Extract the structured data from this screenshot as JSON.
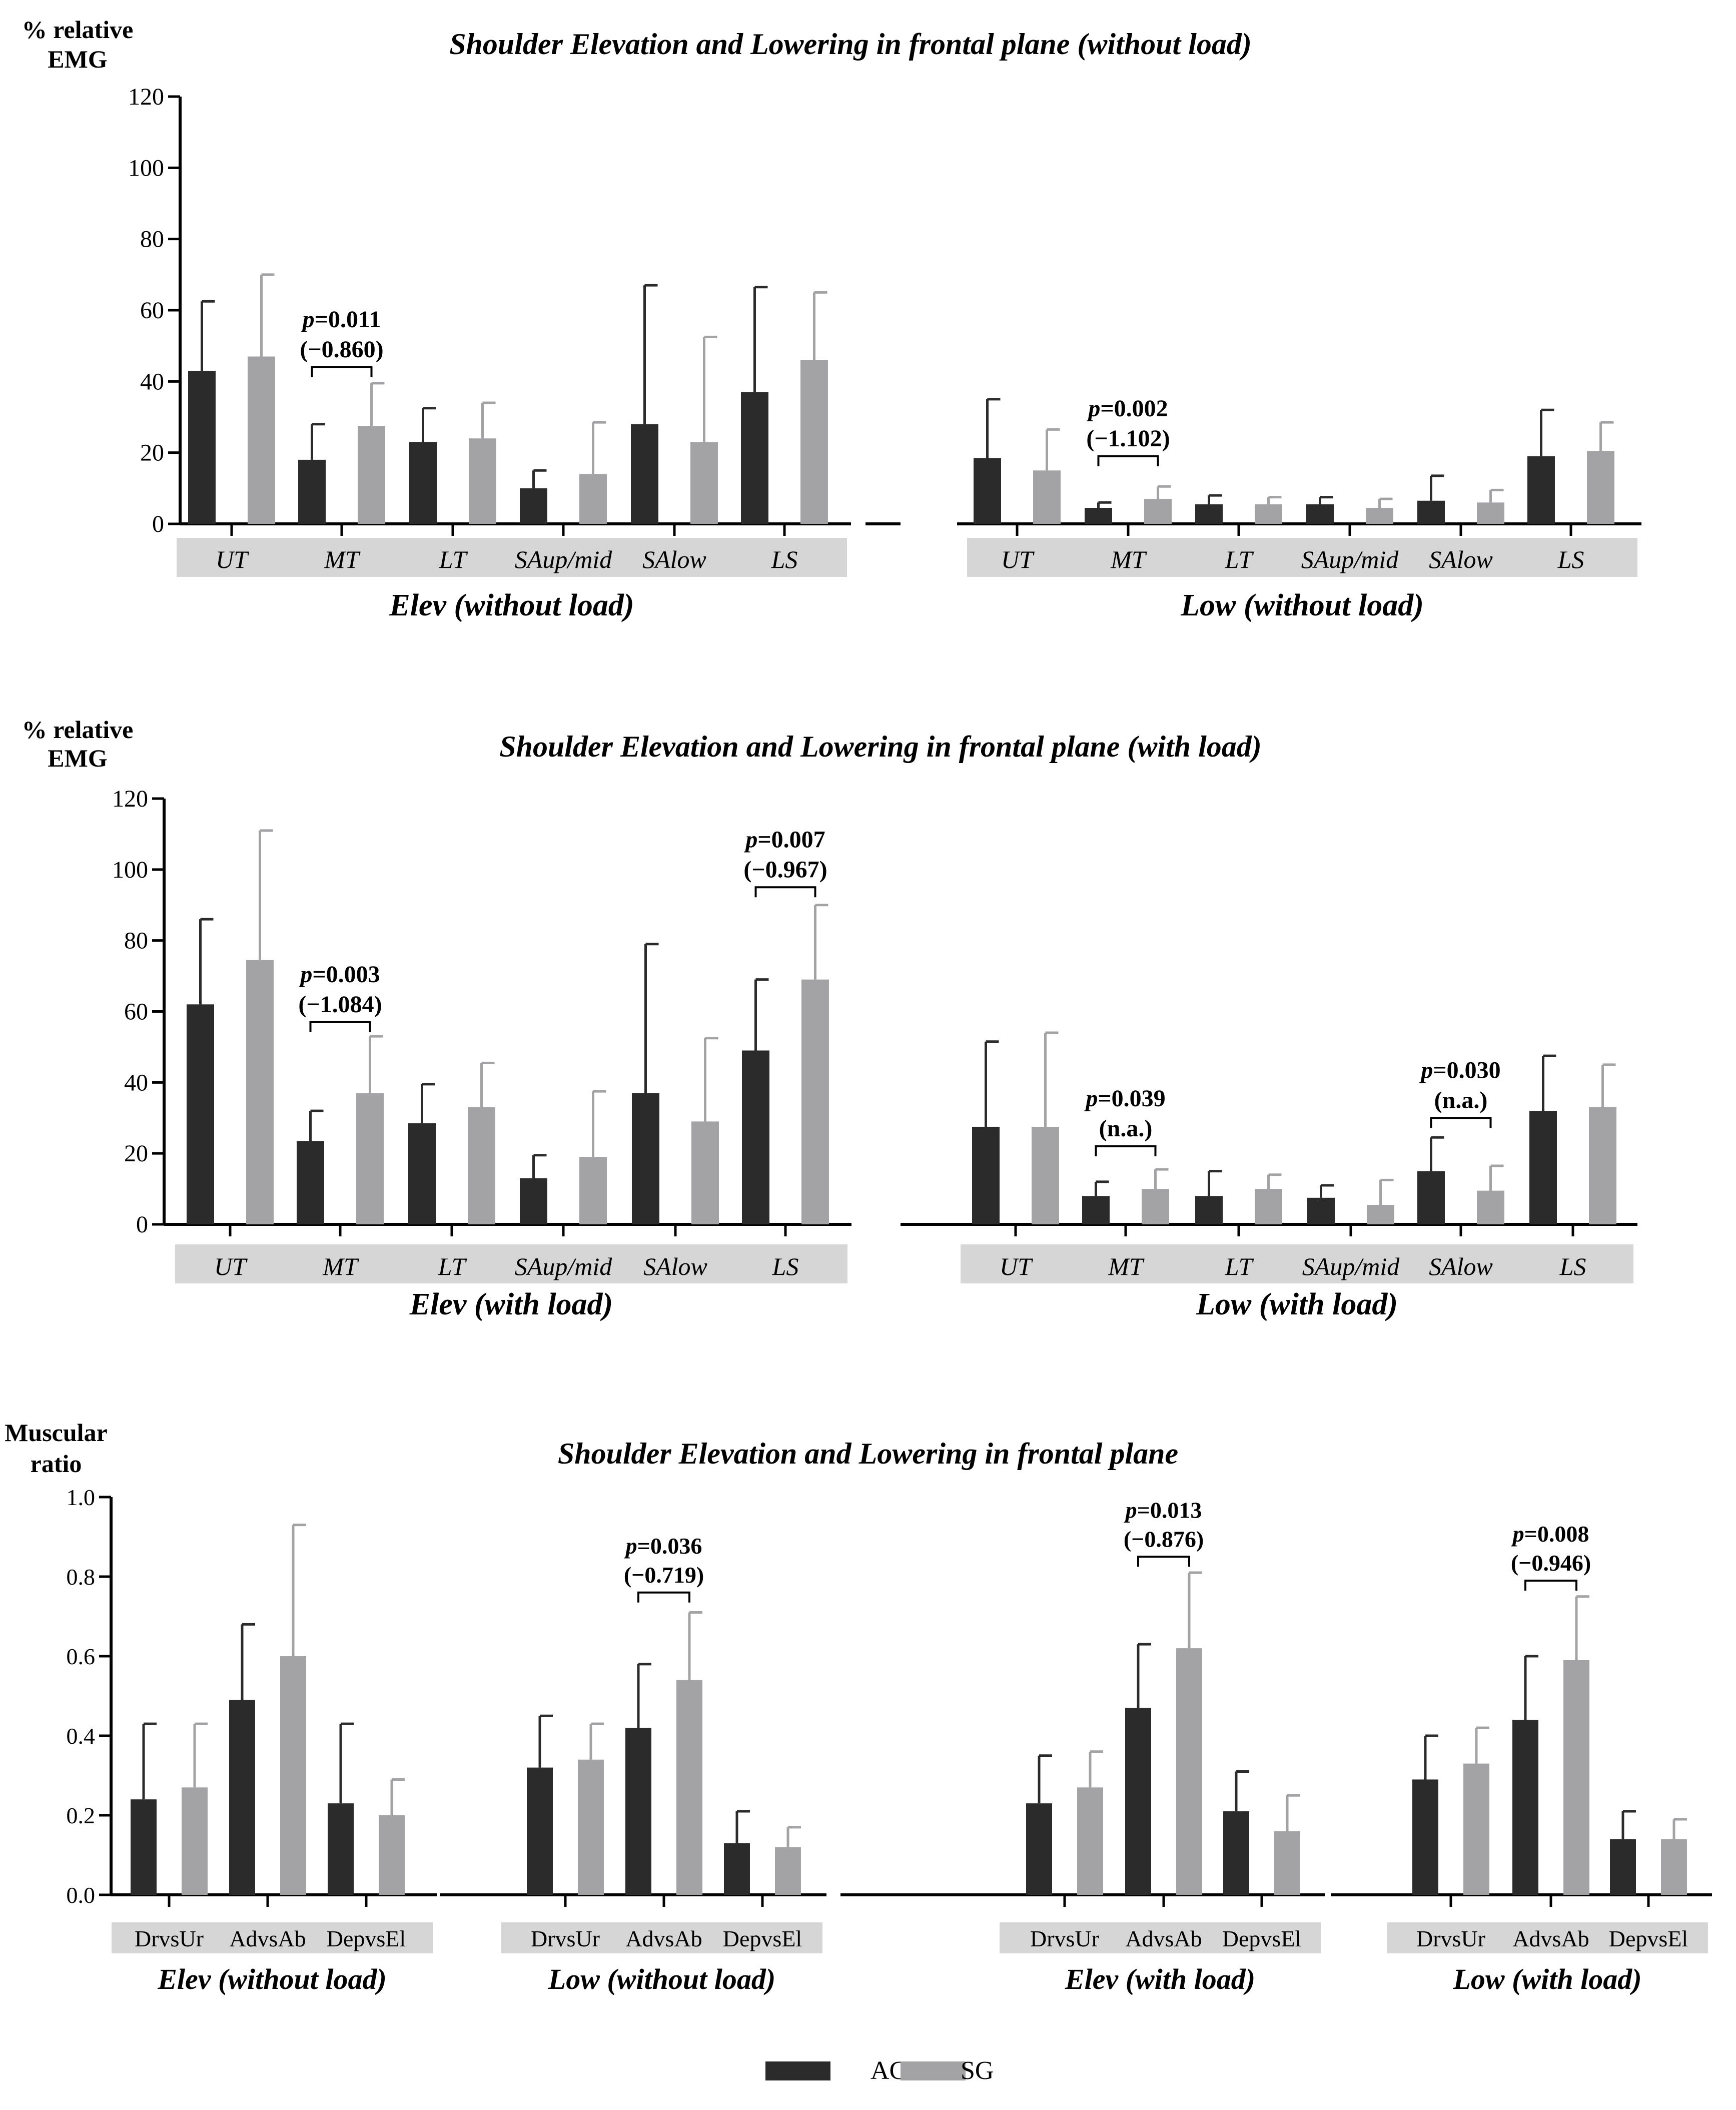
{
  "colors": {
    "ag": "#2b2b2b",
    "sg": "#a3a3a5",
    "band": "#d6d6d6",
    "axis": "#000000"
  },
  "legend": [
    {
      "name": "AG",
      "color": "#2b2b2b"
    },
    {
      "name": "SG",
      "color": "#a3a3a5"
    }
  ],
  "chart_data": [
    {
      "type": "bar",
      "title": "Shoulder Elevation and Lowering in frontal plane (without load)",
      "ylabel": [
        "% relative",
        "EMG"
      ],
      "ylim": [
        0,
        120
      ],
      "yticks": [
        "0",
        "20",
        "40",
        "60",
        "80",
        "100",
        "120"
      ],
      "italic_categories": true,
      "groups": [
        {
          "label": "Elev (without load)",
          "categories": [
            "UT",
            "MT",
            "LT",
            "SAup/mid",
            "SAlow",
            "LS"
          ],
          "series": [
            {
              "name": "AG",
              "values": [
                43,
                18,
                23,
                10,
                28,
                37
              ],
              "err": [
                62.5,
                28,
                32.5,
                15,
                67,
                66.5
              ]
            },
            {
              "name": "SG",
              "values": [
                47,
                27.5,
                24,
                14,
                23,
                46
              ],
              "err": [
                70,
                39.5,
                34,
                28.5,
                52.5,
                65
              ]
            }
          ],
          "annotations": [
            {
              "category": 1,
              "lines": [
                "p=0.011",
                "(−0.860)"
              ],
              "bracket_y": 44
            }
          ]
        },
        {
          "label": "Low (without load)",
          "categories": [
            "UT",
            "MT",
            "LT",
            "SAup/mid",
            "SAlow",
            "LS"
          ],
          "series": [
            {
              "name": "AG",
              "values": [
                18.5,
                4.5,
                5.5,
                5.5,
                6.5,
                19
              ],
              "err": [
                35,
                6,
                8,
                7.5,
                13.5,
                32
              ]
            },
            {
              "name": "SG",
              "values": [
                15,
                7,
                5.5,
                4.5,
                6,
                20.5
              ],
              "err": [
                26.5,
                10.5,
                7.5,
                7,
                9.5,
                28.5
              ]
            }
          ],
          "annotations": [
            {
              "category": 1,
              "lines": [
                "p=0.002",
                "(−1.102)"
              ],
              "bracket_y": 19
            }
          ]
        }
      ]
    },
    {
      "type": "bar",
      "title": "Shoulder Elevation and Lowering in frontal plane (with load)",
      "ylabel": [
        "% relative",
        "EMG"
      ],
      "ylim": [
        0,
        120
      ],
      "yticks": [
        "0",
        "20",
        "40",
        "60",
        "80",
        "100",
        "120"
      ],
      "italic_categories": true,
      "groups": [
        {
          "label": "Elev (with load)",
          "categories": [
            "UT",
            "MT",
            "LT",
            "SAup/mid",
            "SAlow",
            "LS"
          ],
          "series": [
            {
              "name": "AG",
              "values": [
                62,
                23.5,
                28.5,
                13,
                37,
                49
              ],
              "err": [
                86,
                32,
                39.5,
                19.5,
                79,
                69
              ]
            },
            {
              "name": "SG",
              "values": [
                74.5,
                37,
                33,
                19,
                29,
                69
              ],
              "err": [
                111,
                53,
                45.5,
                37.5,
                52.5,
                90
              ]
            }
          ],
          "annotations": [
            {
              "category": 1,
              "lines": [
                "p=0.003",
                "(−1.084)"
              ],
              "bracket_y": 57
            },
            {
              "category": 5,
              "lines": [
                "p=0.007",
                "(−0.967)"
              ],
              "bracket_y": 95
            }
          ]
        },
        {
          "label": "Low (with load)",
          "categories": [
            "UT",
            "MT",
            "LT",
            "SAup/mid",
            "SAlow",
            "LS"
          ],
          "series": [
            {
              "name": "AG",
              "values": [
                27.5,
                8,
                8,
                7.5,
                15,
                32
              ],
              "err": [
                51.5,
                12,
                15,
                11,
                24.5,
                47.5
              ]
            },
            {
              "name": "SG",
              "values": [
                27.5,
                10,
                10,
                5.5,
                9.5,
                33
              ],
              "err": [
                54,
                15.5,
                14,
                12.5,
                16.5,
                45
              ]
            }
          ],
          "annotations": [
            {
              "category": 1,
              "lines": [
                "p=0.039",
                "(n.a.)"
              ],
              "bracket_y": 22
            },
            {
              "category": 4,
              "lines": [
                "p=0.030",
                "(n.a.)"
              ],
              "bracket_y": 30
            }
          ]
        }
      ]
    },
    {
      "type": "bar",
      "title": "Shoulder Elevation and Lowering in frontal plane",
      "ylabel": [
        "Muscular",
        "ratio"
      ],
      "ylim": [
        0,
        1
      ],
      "yticks": [
        "0.0",
        "0.2",
        "0.4",
        "0.6",
        "0.8",
        "1.0"
      ],
      "italic_categories": false,
      "groups": [
        {
          "label": "Elev (without load)",
          "categories": [
            "DrvsUr",
            "AdvsAb",
            "DepvsEl"
          ],
          "series": [
            {
              "name": "AG",
              "values": [
                0.24,
                0.49,
                0.23
              ],
              "err": [
                0.43,
                0.68,
                0.43
              ]
            },
            {
              "name": "SG",
              "values": [
                0.27,
                0.6,
                0.2
              ],
              "err": [
                0.43,
                0.93,
                0.29
              ]
            }
          ],
          "annotations": []
        },
        {
          "label": "Low (without load)",
          "categories": [
            "DrvsUr",
            "AdvsAb",
            "DepvsEl"
          ],
          "series": [
            {
              "name": "AG",
              "values": [
                0.32,
                0.42,
                0.13
              ],
              "err": [
                0.45,
                0.58,
                0.21
              ]
            },
            {
              "name": "SG",
              "values": [
                0.34,
                0.54,
                0.12
              ],
              "err": [
                0.43,
                0.71,
                0.17
              ]
            }
          ],
          "annotations": [
            {
              "category": 1,
              "lines": [
                "p=0.036",
                "(−0.719)"
              ],
              "bracket_y": 0.76
            }
          ]
        },
        {
          "label": "Elev (with load)",
          "categories": [
            "DrvsUr",
            "AdvsAb",
            "DepvsEl"
          ],
          "series": [
            {
              "name": "AG",
              "values": [
                0.23,
                0.47,
                0.21
              ],
              "err": [
                0.35,
                0.63,
                0.31
              ]
            },
            {
              "name": "SG",
              "values": [
                0.27,
                0.62,
                0.16
              ],
              "err": [
                0.36,
                0.81,
                0.25
              ]
            }
          ],
          "annotations": [
            {
              "category": 1,
              "lines": [
                "p=0.013",
                "(−0.876)"
              ],
              "bracket_y": 0.85
            }
          ]
        },
        {
          "label": "Low (with load)",
          "categories": [
            "DrvsUr",
            "AdvsAb",
            "DepvsEl"
          ],
          "series": [
            {
              "name": "AG",
              "values": [
                0.29,
                0.44,
                0.14
              ],
              "err": [
                0.4,
                0.6,
                0.21
              ]
            },
            {
              "name": "SG",
              "values": [
                0.33,
                0.59,
                0.14
              ],
              "err": [
                0.42,
                0.75,
                0.19
              ]
            }
          ],
          "annotations": [
            {
              "category": 1,
              "lines": [
                "p=0.008",
                "(−0.946)"
              ],
              "bracket_y": 0.79
            }
          ]
        }
      ]
    }
  ]
}
